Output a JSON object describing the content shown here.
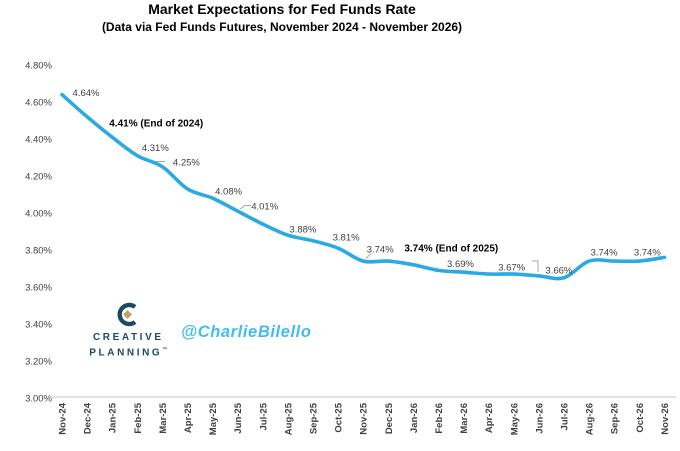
{
  "header": {
    "title": "Market Expectations for Fed Funds Rate",
    "subtitle": "(Data via Fed Funds Futures, November 2024 - November 2026)"
  },
  "watermark": {
    "logo_line1": "CREATIVE",
    "logo_line2": "PLANNING",
    "logo_tm": "™",
    "handle": "@CharlieBilello"
  },
  "colors": {
    "line": "#29ABE2",
    "axis_line": "#D9D9D9",
    "axis_text": "#3F3F3F",
    "label": "#404040",
    "label_bold": "#000000",
    "leader": "#A6A6A6",
    "logo_navy": "#1B4A63",
    "logo_gold": "#C7A265",
    "handle_blue": "#41BEF0"
  },
  "chart_data": {
    "type": "line",
    "title": "Market Expectations for Fed Funds Rate",
    "subtitle": "(Data via Fed Funds Futures, November 2024 - November 2026)",
    "xlabel": "",
    "ylabel": "",
    "ylim": [
      3.0,
      4.8
    ],
    "ytick_step": 0.2,
    "ytick_labels": [
      "4.80%",
      "4.60%",
      "4.40%",
      "4.20%",
      "4.00%",
      "3.80%",
      "3.60%",
      "3.40%",
      "3.20%",
      "3.00%"
    ],
    "grid": false,
    "legend": false,
    "line_color": "#29ABE2",
    "categories": [
      "Nov-24",
      "Dec-24",
      "Jan-25",
      "Feb-25",
      "Mar-25",
      "Apr-25",
      "May-25",
      "Jun-25",
      "Jul-25",
      "Aug-25",
      "Sep-25",
      "Oct-25",
      "Nov-25",
      "Dec-25",
      "Jan-26",
      "Feb-26",
      "Mar-26",
      "Apr-26",
      "May-26",
      "Jun-26",
      "Jul-26",
      "Aug-26",
      "Sep-26",
      "Oct-26",
      "Nov-26"
    ],
    "values": [
      4.64,
      4.52,
      4.41,
      4.31,
      4.25,
      4.13,
      4.08,
      4.01,
      3.94,
      3.88,
      3.85,
      3.81,
      3.74,
      3.74,
      3.72,
      3.69,
      3.68,
      3.67,
      3.67,
      3.66,
      3.65,
      3.74,
      3.74,
      3.74,
      3.76
    ],
    "point_labels": [
      {
        "index": 0,
        "text": "4.64%",
        "bold": false
      },
      {
        "index": 2,
        "text": "4.41% (End of 2024)",
        "bold": true
      },
      {
        "index": 3,
        "text": "4.31%",
        "bold": false
      },
      {
        "index": 4,
        "text": "4.25%",
        "bold": false
      },
      {
        "index": 6,
        "text": "4.08%",
        "bold": false
      },
      {
        "index": 7,
        "text": "4.01%",
        "bold": false
      },
      {
        "index": 9,
        "text": "3.88%",
        "bold": false
      },
      {
        "index": 11,
        "text": "3.81%",
        "bold": false
      },
      {
        "index": 12,
        "text": "3.74%",
        "bold": false
      },
      {
        "index": 13,
        "text": "3.74% (End of 2025)",
        "bold": true
      },
      {
        "index": 15,
        "text": "3.69%",
        "bold": false
      },
      {
        "index": 17,
        "text": "3.67%",
        "bold": false
      },
      {
        "index": 19,
        "text": "3.66%",
        "bold": false
      },
      {
        "index": 21,
        "text": "3.74%",
        "bold": false
      },
      {
        "index": 23,
        "text": "3.74%",
        "bold": false
      }
    ]
  }
}
